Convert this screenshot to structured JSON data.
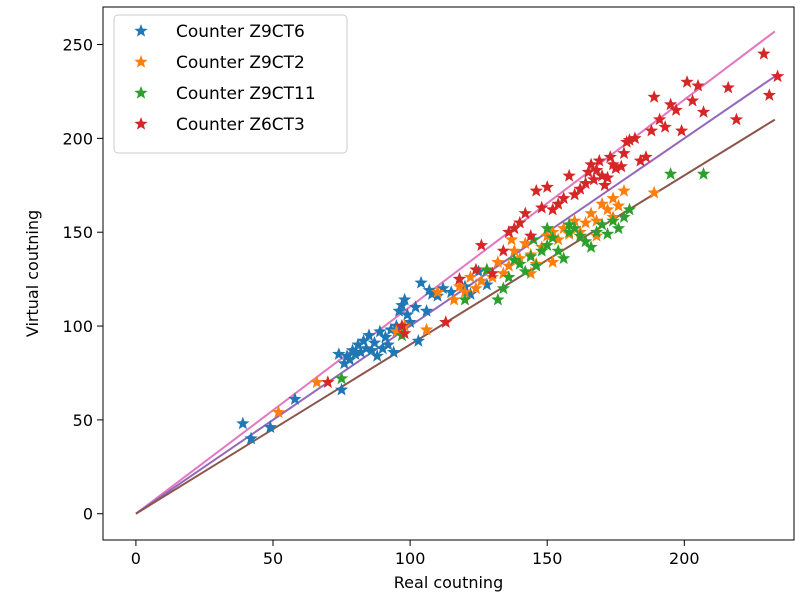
{
  "chart_data": {
    "type": "scatter",
    "title": "",
    "xlabel": "Real coutning",
    "ylabel": "Virtual coutning",
    "xlim": [
      -12,
      240
    ],
    "ylim": [
      -14,
      270
    ],
    "xticks": [
      0,
      50,
      100,
      150,
      200
    ],
    "yticks": [
      0,
      50,
      100,
      150,
      200,
      250
    ],
    "grid": false,
    "legend_position": "top-left",
    "marker": "star",
    "series": [
      {
        "name": "Counter Z9CT6",
        "color": "#1f77b4",
        "points": [
          [
            39,
            48
          ],
          [
            42,
            40
          ],
          [
            49,
            46
          ],
          [
            58,
            61
          ],
          [
            74,
            85
          ],
          [
            75,
            66
          ],
          [
            76,
            80
          ],
          [
            77,
            84
          ],
          [
            78,
            82
          ],
          [
            79,
            87
          ],
          [
            80,
            85
          ],
          [
            81,
            90
          ],
          [
            82,
            86
          ],
          [
            83,
            92
          ],
          [
            84,
            88
          ],
          [
            85,
            95
          ],
          [
            86,
            87
          ],
          [
            87,
            91
          ],
          [
            88,
            84
          ],
          [
            89,
            97
          ],
          [
            90,
            88
          ],
          [
            91,
            94
          ],
          [
            92,
            90
          ],
          [
            93,
            98
          ],
          [
            94,
            86
          ],
          [
            95,
            100
          ],
          [
            96,
            108
          ],
          [
            97,
            111
          ],
          [
            98,
            114
          ],
          [
            99,
            106
          ],
          [
            100,
            102
          ],
          [
            102,
            110
          ],
          [
            103,
            92
          ],
          [
            104,
            123
          ],
          [
            106,
            108
          ],
          [
            107,
            119
          ],
          [
            108,
            117
          ],
          [
            110,
            116
          ],
          [
            112,
            120
          ],
          [
            115,
            118
          ],
          [
            118,
            125
          ],
          [
            120,
            121
          ],
          [
            122,
            117
          ],
          [
            125,
            129
          ],
          [
            128,
            122
          ]
        ]
      },
      {
        "name": "Counter Z9CT2",
        "color": "#ff7f0e",
        "points": [
          [
            52,
            54
          ],
          [
            66,
            70
          ],
          [
            95,
            97
          ],
          [
            98,
            100
          ],
          [
            106,
            98
          ],
          [
            110,
            118
          ],
          [
            116,
            114
          ],
          [
            118,
            121
          ],
          [
            120,
            118
          ],
          [
            122,
            126
          ],
          [
            124,
            120
          ],
          [
            126,
            124
          ],
          [
            128,
            130
          ],
          [
            130,
            126
          ],
          [
            132,
            134
          ],
          [
            134,
            128
          ],
          [
            136,
            132
          ],
          [
            138,
            140
          ],
          [
            140,
            136
          ],
          [
            142,
            144
          ],
          [
            144,
            138
          ],
          [
            146,
            133
          ],
          [
            148,
            142
          ],
          [
            150,
            148
          ],
          [
            152,
            150
          ],
          [
            154,
            146
          ],
          [
            156,
            152
          ],
          [
            158,
            149
          ],
          [
            160,
            156
          ],
          [
            162,
            150
          ],
          [
            164,
            155
          ],
          [
            166,
            160
          ],
          [
            168,
            156
          ],
          [
            170,
            165
          ],
          [
            172,
            162
          ],
          [
            174,
            168
          ],
          [
            176,
            164
          ],
          [
            178,
            172
          ],
          [
            189,
            171
          ],
          [
            144,
            128
          ],
          [
            137,
            146
          ],
          [
            152,
            134
          ],
          [
            168,
            148
          ],
          [
            174,
            158
          ]
        ]
      },
      {
        "name": "Counter Z9CT11",
        "color": "#2ca02c",
        "points": [
          [
            75,
            72
          ],
          [
            97,
            95
          ],
          [
            120,
            114
          ],
          [
            128,
            130
          ],
          [
            132,
            114
          ],
          [
            134,
            120
          ],
          [
            136,
            126
          ],
          [
            138,
            135
          ],
          [
            140,
            133
          ],
          [
            142,
            129
          ],
          [
            144,
            137
          ],
          [
            146,
            132
          ],
          [
            148,
            140
          ],
          [
            150,
            143
          ],
          [
            152,
            147
          ],
          [
            154,
            140
          ],
          [
            156,
            136
          ],
          [
            158,
            150
          ],
          [
            160,
            152
          ],
          [
            162,
            148
          ],
          [
            164,
            145
          ],
          [
            166,
            142
          ],
          [
            168,
            150
          ],
          [
            170,
            154
          ],
          [
            172,
            149
          ],
          [
            174,
            156
          ],
          [
            176,
            152
          ],
          [
            178,
            158
          ],
          [
            180,
            162
          ],
          [
            195,
            181
          ],
          [
            207,
            181
          ],
          [
            150,
            152
          ],
          [
            158,
            154
          ],
          [
            145,
            146
          ]
        ]
      },
      {
        "name": "Counter Z6CT3",
        "color": "#d62728",
        "points": [
          [
            70,
            70
          ],
          [
            97,
            100
          ],
          [
            98,
            96
          ],
          [
            113,
            102
          ],
          [
            118,
            125
          ],
          [
            124,
            130
          ],
          [
            126,
            143
          ],
          [
            130,
            128
          ],
          [
            134,
            140
          ],
          [
            136,
            150
          ],
          [
            138,
            152
          ],
          [
            140,
            155
          ],
          [
            142,
            160
          ],
          [
            144,
            148
          ],
          [
            146,
            172
          ],
          [
            148,
            163
          ],
          [
            150,
            174
          ],
          [
            152,
            162
          ],
          [
            154,
            165
          ],
          [
            156,
            168
          ],
          [
            158,
            180
          ],
          [
            160,
            170
          ],
          [
            162,
            173
          ],
          [
            164,
            176
          ],
          [
            165,
            182
          ],
          [
            166,
            186
          ],
          [
            167,
            178
          ],
          [
            168,
            183
          ],
          [
            169,
            188
          ],
          [
            170,
            180
          ],
          [
            171,
            175
          ],
          [
            172,
            179
          ],
          [
            173,
            190
          ],
          [
            174,
            186
          ],
          [
            175,
            184
          ],
          [
            177,
            185
          ],
          [
            178,
            192
          ],
          [
            179,
            198
          ],
          [
            180,
            199
          ],
          [
            182,
            200
          ],
          [
            184,
            188
          ],
          [
            186,
            190
          ],
          [
            188,
            204
          ],
          [
            189,
            222
          ],
          [
            191,
            210
          ],
          [
            193,
            206
          ],
          [
            195,
            218
          ],
          [
            197,
            215
          ],
          [
            199,
            204
          ],
          [
            201,
            230
          ],
          [
            203,
            220
          ],
          [
            205,
            228
          ],
          [
            207,
            214
          ],
          [
            216,
            227
          ],
          [
            219,
            210
          ],
          [
            229,
            245
          ],
          [
            231,
            223
          ],
          [
            234,
            233
          ]
        ]
      }
    ],
    "lines": [
      {
        "color": "#e377c2",
        "points": [
          [
            0,
            0
          ],
          [
            233,
            257
          ]
        ]
      },
      {
        "color": "#9467bd",
        "points": [
          [
            0,
            0
          ],
          [
            233,
            233
          ]
        ]
      },
      {
        "color": "#8c564b",
        "points": [
          [
            0,
            0
          ],
          [
            233,
            210
          ]
        ]
      }
    ]
  }
}
